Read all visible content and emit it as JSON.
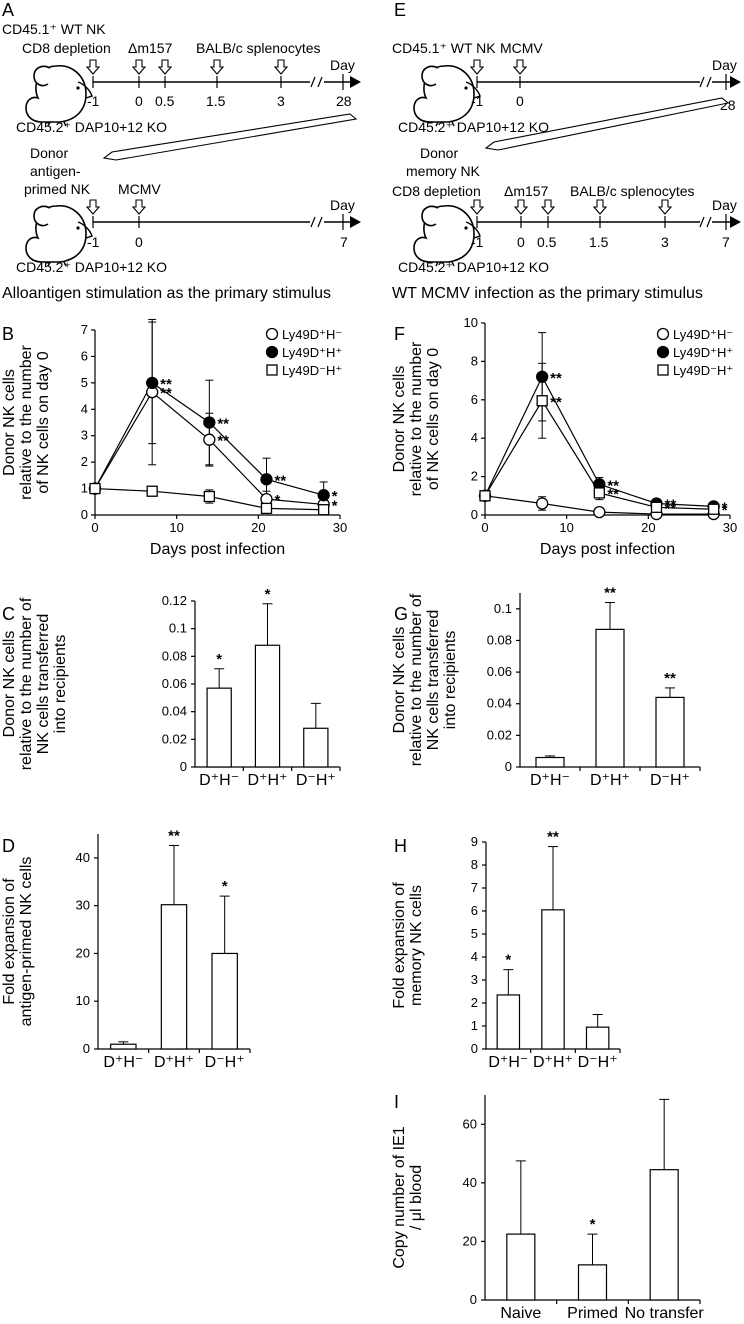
{
  "panels": {
    "A": {
      "letter": "A",
      "top_texts": [
        "CD45.1⁺ WT NK",
        "CD8 depletion",
        "Δm157",
        "BALB/c splenocytes"
      ],
      "day_word": "Day",
      "ticks1": [
        "-1",
        "0",
        "0.5",
        "1.5",
        "3",
        "28"
      ],
      "host1": "CD45.2⁺ DAP10+12 KO",
      "donor_lines": [
        "Donor",
        "antigen-",
        "primed NK"
      ],
      "mcmv": "MCMV",
      "ticks2": [
        "-1",
        "0",
        "7"
      ],
      "host2": "CD45.2⁺ DAP10+12 KO",
      "caption": "Alloantigen stimulation as the primary stimulus"
    },
    "E": {
      "letter": "E",
      "top_texts": [
        "CD45.1⁺ WT NK",
        "MCMV"
      ],
      "day_word": "Day",
      "ticks1": [
        "-1",
        "0",
        "28"
      ],
      "host1": "CD45.2⁺ DAP10+12 KO",
      "donor_lines": [
        "Donor",
        "memory NK"
      ],
      "second_texts": [
        "CD8 depletion",
        "Δm157",
        "BALB/c splenocytes"
      ],
      "ticks2": [
        "-1",
        "0",
        "0.5",
        "1.5",
        "3",
        "7"
      ],
      "host2": "CD45.2⁺ DAP10+12 KO",
      "caption": "WT MCMV infection as the primary stimulus"
    }
  },
  "chart_data": [
    {
      "id": "B",
      "letter": "B",
      "type": "line",
      "ylabel_lines": [
        "Donor NK cells",
        "relative to the number",
        "of NK cells on day 0"
      ],
      "xlabel": "Days post infection",
      "xlim": [
        0,
        30
      ],
      "ylim": [
        0,
        7
      ],
      "xticks": [
        0,
        10,
        20,
        30
      ],
      "yticks": [
        0,
        1,
        2,
        3,
        4,
        5,
        6,
        7
      ],
      "x": [
        0,
        7,
        14,
        21,
        28
      ],
      "legend": [
        "Ly49D⁺H⁻",
        "Ly49D⁺H⁺",
        "Ly49D⁻H⁺"
      ],
      "series": [
        {
          "name": "Ly49D⁺H⁻",
          "marker": "open-circle",
          "values": [
            1.0,
            4.65,
            2.85,
            0.6,
            0.4
          ],
          "err": [
            0.1,
            2.75,
            1.0,
            0.3,
            0.15
          ],
          "stars": [
            "",
            "**",
            "**",
            "*",
            "*"
          ]
        },
        {
          "name": "Ly49D⁺H⁺",
          "marker": "filled-circle",
          "values": [
            1.0,
            5.0,
            3.5,
            1.35,
            0.75
          ],
          "err": [
            0.1,
            2.3,
            1.6,
            0.8,
            0.5
          ],
          "stars": [
            "",
            "**",
            "**",
            "**",
            "*"
          ]
        },
        {
          "name": "Ly49D⁻H⁺",
          "marker": "open-square",
          "values": [
            1.0,
            0.9,
            0.7,
            0.25,
            0.2
          ],
          "err": [
            0.1,
            0.1,
            0.25,
            0.1,
            0.05
          ],
          "stars": [
            "",
            "",
            "",
            "",
            ""
          ]
        }
      ]
    },
    {
      "id": "F",
      "letter": "F",
      "type": "line",
      "ylabel_lines": [
        "Donor NK cells",
        "relative to the number",
        "of NK cells on day 0"
      ],
      "xlabel": "Days post infection",
      "xlim": [
        0,
        30
      ],
      "ylim": [
        0,
        10
      ],
      "xticks": [
        0,
        10,
        20,
        30
      ],
      "yticks": [
        0,
        2,
        4,
        6,
        8,
        10
      ],
      "x": [
        0,
        7,
        14,
        21,
        28
      ],
      "legend": [
        "Ly49D⁺H⁻",
        "Ly49D⁺H⁺",
        "Ly49D⁻H⁺"
      ],
      "series": [
        {
          "name": "Ly49D⁺H⁻",
          "marker": "open-circle",
          "values": [
            1.0,
            0.6,
            0.15,
            0.05,
            0.05
          ],
          "err": [
            0.1,
            0.35,
            0.05,
            0.05,
            0.05
          ],
          "stars": [
            "",
            "",
            "",
            "",
            ""
          ]
        },
        {
          "name": "Ly49D⁺H⁺",
          "marker": "filled-circle",
          "values": [
            1.0,
            7.2,
            1.6,
            0.6,
            0.45
          ],
          "err": [
            0.1,
            2.3,
            0.35,
            0.15,
            0.1
          ],
          "stars": [
            "",
            "**",
            "**",
            "**",
            "*"
          ]
        },
        {
          "name": "Ly49D⁻H⁺",
          "marker": "open-square",
          "values": [
            1.0,
            5.95,
            1.15,
            0.4,
            0.3
          ],
          "err": [
            0.1,
            1.95,
            0.35,
            0.12,
            0.1
          ],
          "stars": [
            "",
            "**",
            "**",
            "**",
            "*"
          ]
        }
      ]
    },
    {
      "id": "C",
      "letter": "C",
      "type": "bar",
      "ylabel_lines": [
        "Donor NK cells",
        "relative  to the number of",
        "NK cells transferred",
        "into recipients"
      ],
      "categories": [
        "D⁺H⁻",
        "D⁺H⁺",
        "D⁻H⁺"
      ],
      "values": [
        0.057,
        0.088,
        0.028
      ],
      "err": [
        0.014,
        0.03,
        0.018
      ],
      "stars": [
        "*",
        "*",
        ""
      ],
      "ylim": [
        0,
        0.12
      ],
      "yticks": [
        0,
        0.02,
        0.04,
        0.06,
        0.08,
        0.1,
        0.12
      ],
      "ytick_labels": [
        "0",
        "0.02",
        "0.04",
        "0.06",
        "0.08",
        "0.1",
        "0.12"
      ]
    },
    {
      "id": "G",
      "letter": "G",
      "type": "bar",
      "ylabel_lines": [
        "Donor NK cells",
        "relative  to the number of",
        "NK cells transferred",
        "into recipients"
      ],
      "categories": [
        "D⁺H⁻",
        "D⁺H⁺",
        "D⁻H⁺"
      ],
      "values": [
        0.006,
        0.087,
        0.044
      ],
      "err": [
        0.001,
        0.017,
        0.006
      ],
      "stars": [
        "",
        "**",
        "**"
      ],
      "ylim": [
        0,
        0.11
      ],
      "yticks": [
        0,
        0.02,
        0.04,
        0.06,
        0.08,
        0.1
      ],
      "ytick_labels": [
        "0",
        "0.02",
        "0.04",
        "0.06",
        "0.08",
        "0.1"
      ]
    },
    {
      "id": "D",
      "letter": "D",
      "type": "bar",
      "ylabel_lines": [
        "Fold expansion of",
        "antigen-primed NK cells"
      ],
      "categories": [
        "D⁺H⁻",
        "D⁺H⁺",
        "D⁻H⁺"
      ],
      "values": [
        1.0,
        30.2,
        20.0
      ],
      "err": [
        0.5,
        12.4,
        12.0
      ],
      "stars": [
        "",
        "**",
        "*"
      ],
      "ylim": [
        0,
        45
      ],
      "yticks": [
        0,
        10,
        20,
        30,
        40
      ],
      "ytick_labels": [
        "0",
        "10",
        "20",
        "30",
        "40"
      ]
    },
    {
      "id": "H",
      "letter": "H",
      "type": "bar",
      "ylabel_lines": [
        "Fold expansion of",
        "memory NK cells"
      ],
      "categories": [
        "D⁺H⁻",
        "D⁺H⁺",
        "D⁻H⁺"
      ],
      "values": [
        2.35,
        6.05,
        0.95
      ],
      "err": [
        1.1,
        2.75,
        0.55
      ],
      "stars": [
        "*",
        "**",
        ""
      ],
      "ylim": [
        0,
        9
      ],
      "yticks": [
        0,
        1,
        2,
        3,
        4,
        5,
        6,
        7,
        8,
        9
      ],
      "ytick_labels": [
        "0",
        "1",
        "2",
        "3",
        "4",
        "5",
        "6",
        "7",
        "8",
        "9"
      ]
    },
    {
      "id": "I",
      "letter": "I",
      "type": "bar",
      "ylabel_lines": [
        "Copy number of IE1",
        "/ μl blood"
      ],
      "categories": [
        "Naive",
        "Primed",
        "No transfer"
      ],
      "values": [
        22.5,
        12.0,
        44.5
      ],
      "err": [
        25.0,
        10.5,
        24.0
      ],
      "stars": [
        "",
        "*",
        ""
      ],
      "ylim": [
        0,
        70
      ],
      "yticks": [
        0,
        20,
        40,
        60
      ],
      "ytick_labels": [
        "0",
        "20",
        "40",
        "60"
      ]
    }
  ]
}
